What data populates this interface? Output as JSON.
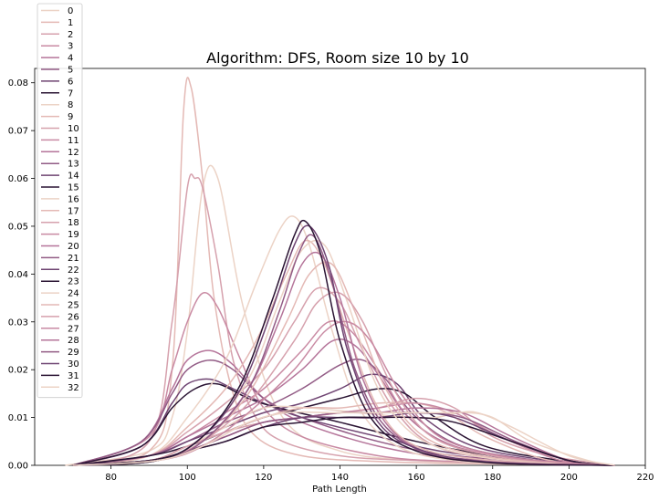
{
  "chart_data": {
    "type": "line",
    "title": "Algorithm: DFS, Room size 10 by 10",
    "xlabel": "Path Length",
    "ylabel": "",
    "xlim": [
      60,
      220
    ],
    "ylim": [
      0,
      0.083
    ],
    "xticks": [
      80,
      100,
      120,
      140,
      160,
      180,
      200,
      220
    ],
    "yticks": [
      0.0,
      0.01,
      0.02,
      0.03,
      0.04,
      0.05,
      0.06,
      0.07,
      0.08
    ],
    "ytick_labels": [
      "0.00",
      "0.01",
      "0.02",
      "0.03",
      "0.04",
      "0.05",
      "0.06",
      "0.07",
      "0.08"
    ],
    "grid": false,
    "legend_position": "top-left",
    "palette": {
      "light": "#ecd3c6",
      "mid": "#b56e96",
      "dark": "#2a1433"
    },
    "series": [
      {
        "name": "0",
        "color": "#ecd3c6",
        "x": [
          68,
          90,
          96,
          100,
          104,
          108,
          115,
          125,
          140,
          160,
          180,
          200,
          212
        ],
        "y": [
          0,
          0.003,
          0.01,
          0.028,
          0.058,
          0.06,
          0.032,
          0.01,
          0.003,
          0.001,
          0.0005,
          0.0002,
          0
        ]
      },
      {
        "name": "1",
        "color": "#e4b9b5",
        "x": [
          70,
          90,
          96,
          99,
          101,
          104,
          107,
          112,
          118,
          130,
          150,
          170,
          200,
          212
        ],
        "y": [
          0,
          0.003,
          0.02,
          0.074,
          0.079,
          0.06,
          0.035,
          0.015,
          0.006,
          0.002,
          0.0008,
          0.0004,
          0.0001,
          0
        ]
      },
      {
        "name": "2",
        "color": "#d6a1ad",
        "x": [
          70,
          90,
          96,
          100,
          102,
          104,
          108,
          112,
          118,
          125,
          140,
          160,
          200,
          212
        ],
        "y": [
          0,
          0.005,
          0.03,
          0.058,
          0.06,
          0.058,
          0.042,
          0.022,
          0.01,
          0.005,
          0.002,
          0.001,
          0.0002,
          0
        ]
      },
      {
        "name": "3",
        "color": "#c98aa3",
        "x": [
          70,
          90,
          96,
          100,
          104,
          108,
          114,
          120,
          130,
          150,
          170,
          200,
          212
        ],
        "y": [
          0,
          0.006,
          0.02,
          0.03,
          0.036,
          0.033,
          0.022,
          0.012,
          0.006,
          0.002,
          0.0008,
          0.0002,
          0
        ]
      },
      {
        "name": "4",
        "color": "#b5759a",
        "x": [
          70,
          88,
          96,
          100,
          106,
          112,
          120,
          130,
          150,
          170,
          200,
          212
        ],
        "y": [
          0,
          0.005,
          0.016,
          0.022,
          0.024,
          0.021,
          0.014,
          0.009,
          0.004,
          0.0015,
          0.0003,
          0
        ]
      },
      {
        "name": "5",
        "color": "#925b85",
        "x": [
          70,
          88,
          96,
          100,
          106,
          112,
          120,
          130,
          150,
          170,
          200,
          212
        ],
        "y": [
          0,
          0.005,
          0.015,
          0.02,
          0.022,
          0.02,
          0.014,
          0.01,
          0.005,
          0.002,
          0.0004,
          0
        ]
      },
      {
        "name": "6",
        "color": "#6f4472",
        "x": [
          70,
          88,
          96,
          100,
          106,
          112,
          120,
          130,
          150,
          170,
          200,
          212
        ],
        "y": [
          0,
          0.004,
          0.013,
          0.017,
          0.018,
          0.016,
          0.013,
          0.01,
          0.006,
          0.0025,
          0.0005,
          0
        ]
      },
      {
        "name": "7",
        "color": "#2a1433",
        "x": [
          70,
          88,
          96,
          102,
          108,
          116,
          124,
          140,
          160,
          180,
          200,
          212
        ],
        "y": [
          0,
          0.004,
          0.012,
          0.016,
          0.017,
          0.014,
          0.012,
          0.009,
          0.005,
          0.002,
          0.0005,
          0
        ]
      },
      {
        "name": "8",
        "color": "#ecd3c6",
        "x": [
          70,
          90,
          100,
          110,
          118,
          124,
          128,
          132,
          138,
          145,
          155,
          170,
          190,
          212
        ],
        "y": [
          0,
          0.002,
          0.01,
          0.022,
          0.038,
          0.049,
          0.052,
          0.046,
          0.028,
          0.012,
          0.004,
          0.001,
          0.0003,
          0
        ]
      },
      {
        "name": "9",
        "color": "#e4b9b5",
        "x": [
          70,
          90,
          100,
          110,
          118,
          126,
          131,
          136,
          142,
          150,
          160,
          180,
          212
        ],
        "y": [
          0,
          0.002,
          0.008,
          0.016,
          0.026,
          0.04,
          0.047,
          0.042,
          0.028,
          0.012,
          0.004,
          0.001,
          0
        ]
      },
      {
        "name": "10",
        "color": "#d6a1ad",
        "x": [
          70,
          90,
          100,
          110,
          120,
          128,
          134,
          140,
          146,
          154,
          165,
          185,
          212
        ],
        "y": [
          0,
          0.002,
          0.007,
          0.013,
          0.02,
          0.03,
          0.037,
          0.034,
          0.024,
          0.012,
          0.004,
          0.001,
          0
        ]
      },
      {
        "name": "11",
        "color": "#c98aa3",
        "x": [
          70,
          90,
          100,
          110,
          120,
          130,
          137,
          143,
          150,
          158,
          170,
          190,
          212
        ],
        "y": [
          0,
          0.002,
          0.006,
          0.011,
          0.016,
          0.024,
          0.03,
          0.028,
          0.02,
          0.01,
          0.004,
          0.001,
          0
        ]
      },
      {
        "name": "12",
        "color": "#b5759a",
        "x": [
          70,
          90,
          100,
          110,
          120,
          130,
          138,
          144,
          150,
          158,
          170,
          190,
          212
        ],
        "y": [
          0,
          0.002,
          0.006,
          0.01,
          0.014,
          0.02,
          0.026,
          0.025,
          0.019,
          0.01,
          0.004,
          0.001,
          0
        ]
      },
      {
        "name": "13",
        "color": "#925b85",
        "x": [
          70,
          90,
          100,
          110,
          120,
          130,
          140,
          146,
          152,
          160,
          172,
          192,
          212
        ],
        "y": [
          0,
          0.002,
          0.005,
          0.009,
          0.012,
          0.016,
          0.021,
          0.022,
          0.018,
          0.01,
          0.004,
          0.001,
          0
        ]
      },
      {
        "name": "14",
        "color": "#6f4472",
        "x": [
          70,
          90,
          100,
          110,
          120,
          130,
          140,
          148,
          155,
          162,
          175,
          195,
          212
        ],
        "y": [
          0,
          0.002,
          0.005,
          0.008,
          0.011,
          0.013,
          0.016,
          0.019,
          0.017,
          0.01,
          0.004,
          0.001,
          0
        ]
      },
      {
        "name": "15",
        "color": "#2a1433",
        "x": [
          70,
          90,
          100,
          110,
          120,
          130,
          140,
          150,
          157,
          165,
          178,
          198,
          212
        ],
        "y": [
          0,
          0.002,
          0.004,
          0.007,
          0.01,
          0.012,
          0.014,
          0.016,
          0.015,
          0.01,
          0.004,
          0.001,
          0
        ]
      },
      {
        "name": "16",
        "color": "#ecd3c6",
        "x": [
          70,
          90,
          100,
          110,
          120,
          132,
          145,
          158,
          165,
          172,
          180,
          190,
          205,
          212
        ],
        "y": [
          0,
          0.001,
          0.004,
          0.008,
          0.012,
          0.012,
          0.011,
          0.01,
          0.01,
          0.011,
          0.01,
          0.005,
          0.001,
          0
        ]
      },
      {
        "name": "17",
        "color": "#e4b9b5",
        "x": [
          70,
          90,
          100,
          110,
          120,
          130,
          140,
          150,
          160,
          168,
          178,
          195,
          212
        ],
        "y": [
          0,
          0.001,
          0.004,
          0.007,
          0.01,
          0.012,
          0.012,
          0.013,
          0.013,
          0.011,
          0.006,
          0.001,
          0
        ]
      },
      {
        "name": "18",
        "color": "#d6a1ad",
        "x": [
          70,
          90,
          100,
          110,
          120,
          130,
          140,
          150,
          160,
          170,
          180,
          195,
          212
        ],
        "y": [
          0,
          0.001,
          0.004,
          0.007,
          0.009,
          0.01,
          0.011,
          0.012,
          0.014,
          0.012,
          0.006,
          0.002,
          0
        ]
      },
      {
        "name": "19",
        "color": "#c98aa3",
        "x": [
          70,
          90,
          100,
          110,
          120,
          130,
          140,
          150,
          160,
          170,
          182,
          198,
          212
        ],
        "y": [
          0,
          0.001,
          0.003,
          0.006,
          0.009,
          0.01,
          0.011,
          0.012,
          0.013,
          0.011,
          0.006,
          0.001,
          0
        ]
      },
      {
        "name": "20",
        "color": "#b5759a",
        "x": [
          70,
          90,
          100,
          110,
          120,
          130,
          140,
          150,
          160,
          172,
          185,
          200,
          212
        ],
        "y": [
          0,
          0.001,
          0.003,
          0.006,
          0.009,
          0.01,
          0.011,
          0.011,
          0.012,
          0.011,
          0.006,
          0.001,
          0
        ]
      },
      {
        "name": "21",
        "color": "#925b85",
        "x": [
          70,
          90,
          100,
          110,
          120,
          130,
          140,
          150,
          160,
          172,
          186,
          200,
          212
        ],
        "y": [
          0,
          0.001,
          0.003,
          0.006,
          0.009,
          0.01,
          0.011,
          0.011,
          0.011,
          0.01,
          0.005,
          0.001,
          0
        ]
      },
      {
        "name": "22",
        "color": "#6f4472",
        "x": [
          70,
          90,
          100,
          110,
          120,
          130,
          140,
          150,
          160,
          170,
          185,
          200,
          212
        ],
        "y": [
          0,
          0.001,
          0.003,
          0.005,
          0.008,
          0.01,
          0.01,
          0.01,
          0.011,
          0.01,
          0.005,
          0.001,
          0
        ]
      },
      {
        "name": "23",
        "color": "#2a1433",
        "x": [
          70,
          90,
          100,
          110,
          120,
          130,
          140,
          150,
          160,
          170,
          185,
          200,
          212
        ],
        "y": [
          0,
          0.001,
          0.003,
          0.005,
          0.008,
          0.009,
          0.01,
          0.01,
          0.01,
          0.009,
          0.005,
          0.001,
          0
        ]
      },
      {
        "name": "24",
        "color": "#ecd3c6",
        "x": [
          70,
          92,
          104,
          116,
          124,
          130,
          136,
          142,
          150,
          160,
          175,
          195,
          212
        ],
        "y": [
          0,
          0.001,
          0.006,
          0.018,
          0.034,
          0.045,
          0.046,
          0.034,
          0.016,
          0.006,
          0.002,
          0.0005,
          0
        ]
      },
      {
        "name": "25",
        "color": "#e4b9b5",
        "x": [
          70,
          92,
          104,
          116,
          126,
          132,
          138,
          144,
          152,
          162,
          177,
          197,
          212
        ],
        "y": [
          0,
          0.001,
          0.005,
          0.015,
          0.03,
          0.04,
          0.042,
          0.032,
          0.016,
          0.006,
          0.002,
          0.0005,
          0
        ]
      },
      {
        "name": "26",
        "color": "#d6a1ad",
        "x": [
          70,
          92,
          104,
          116,
          128,
          134,
          140,
          146,
          154,
          164,
          180,
          200,
          212
        ],
        "y": [
          0,
          0.001,
          0.005,
          0.013,
          0.026,
          0.034,
          0.036,
          0.03,
          0.016,
          0.006,
          0.002,
          0.0005,
          0
        ]
      },
      {
        "name": "27",
        "color": "#c98aa3",
        "x": [
          70,
          92,
          104,
          116,
          128,
          136,
          142,
          148,
          156,
          166,
          182,
          200,
          212
        ],
        "y": [
          0,
          0.001,
          0.004,
          0.011,
          0.02,
          0.028,
          0.03,
          0.026,
          0.015,
          0.006,
          0.002,
          0.0005,
          0
        ]
      },
      {
        "name": "28",
        "color": "#b5759a",
        "x": [
          70,
          92,
          104,
          116,
          124,
          130,
          135,
          140,
          146,
          154,
          166,
          185,
          212
        ],
        "y": [
          0,
          0.001,
          0.005,
          0.016,
          0.03,
          0.042,
          0.044,
          0.035,
          0.018,
          0.007,
          0.002,
          0.0005,
          0
        ]
      },
      {
        "name": "29",
        "color": "#925b85",
        "x": [
          70,
          92,
          104,
          116,
          124,
          129,
          133,
          138,
          144,
          152,
          165,
          185,
          212
        ],
        "y": [
          0,
          0.001,
          0.005,
          0.016,
          0.032,
          0.044,
          0.048,
          0.038,
          0.02,
          0.008,
          0.002,
          0.0005,
          0
        ]
      },
      {
        "name": "30",
        "color": "#6f4472",
        "x": [
          70,
          92,
          104,
          114,
          122,
          128,
          132,
          137,
          142,
          150,
          162,
          182,
          212
        ],
        "y": [
          0,
          0.001,
          0.006,
          0.016,
          0.032,
          0.046,
          0.05,
          0.042,
          0.024,
          0.009,
          0.003,
          0.0005,
          0
        ]
      },
      {
        "name": "31",
        "color": "#2a1433",
        "x": [
          70,
          92,
          104,
          114,
          122,
          128,
          131,
          135,
          140,
          148,
          160,
          180,
          212
        ],
        "y": [
          0,
          0.001,
          0.006,
          0.017,
          0.034,
          0.048,
          0.051,
          0.044,
          0.026,
          0.01,
          0.003,
          0.0005,
          0
        ]
      },
      {
        "name": "32",
        "color": "#ecd3c6",
        "x": [
          70,
          92,
          104,
          116,
          126,
          138,
          150,
          162,
          170,
          176,
          185,
          200,
          212
        ],
        "y": [
          0,
          0.001,
          0.004,
          0.009,
          0.011,
          0.011,
          0.011,
          0.011,
          0.011,
          0.011,
          0.008,
          0.002,
          0
        ]
      }
    ]
  }
}
